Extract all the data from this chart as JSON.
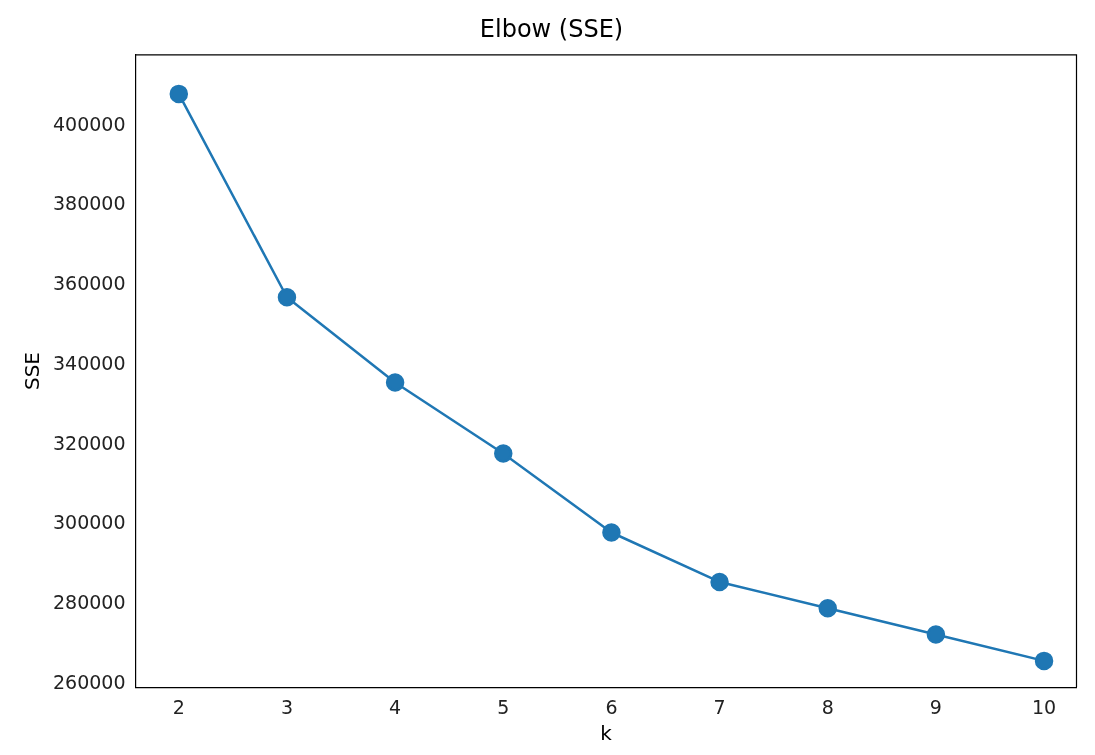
{
  "chart_data": {
    "type": "line",
    "title": "Elbow (SSE)",
    "xlabel": "k",
    "ylabel": "SSE",
    "x": [
      2,
      3,
      4,
      5,
      6,
      7,
      8,
      9,
      10
    ],
    "series": [
      {
        "color": "#1f77b4",
        "values": [
          408000,
          357000,
          335600,
          317800,
          298000,
          285600,
          279000,
          272400,
          265800
        ]
      }
    ],
    "xlim": [
      1.6,
      10.3
    ],
    "xticks": [
      2,
      3,
      4,
      5,
      6,
      7,
      8,
      9,
      10
    ],
    "ylim": [
      259200,
      417800
    ],
    "yticks": [
      260000,
      280000,
      300000,
      320000,
      340000,
      360000,
      380000,
      400000
    ],
    "marker": "circle",
    "line_style": "solid",
    "grid": false,
    "legend": false
  }
}
